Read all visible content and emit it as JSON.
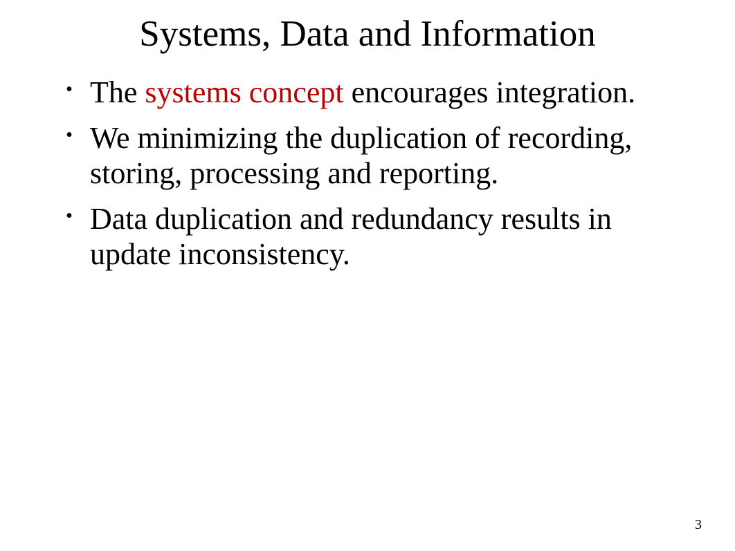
{
  "slide": {
    "title": "Systems, Data and Information",
    "bullets": [
      {
        "pre": "The  ",
        "highlight": "systems concept",
        "post": "       encourages integration."
      },
      {
        "text": "We minimizing the duplication of recording, storing, processing and reporting."
      },
      {
        "text": "Data duplication and redundancy results in update inconsistency."
      }
    ],
    "pageNumber": "3"
  },
  "styles": {
    "background_color": "#ffffff",
    "text_color": "#000000",
    "highlight_color": "#c00000",
    "font_family": "Times New Roman",
    "title_fontsize": 53,
    "body_fontsize": 44,
    "pagenum_fontsize": 20
  }
}
